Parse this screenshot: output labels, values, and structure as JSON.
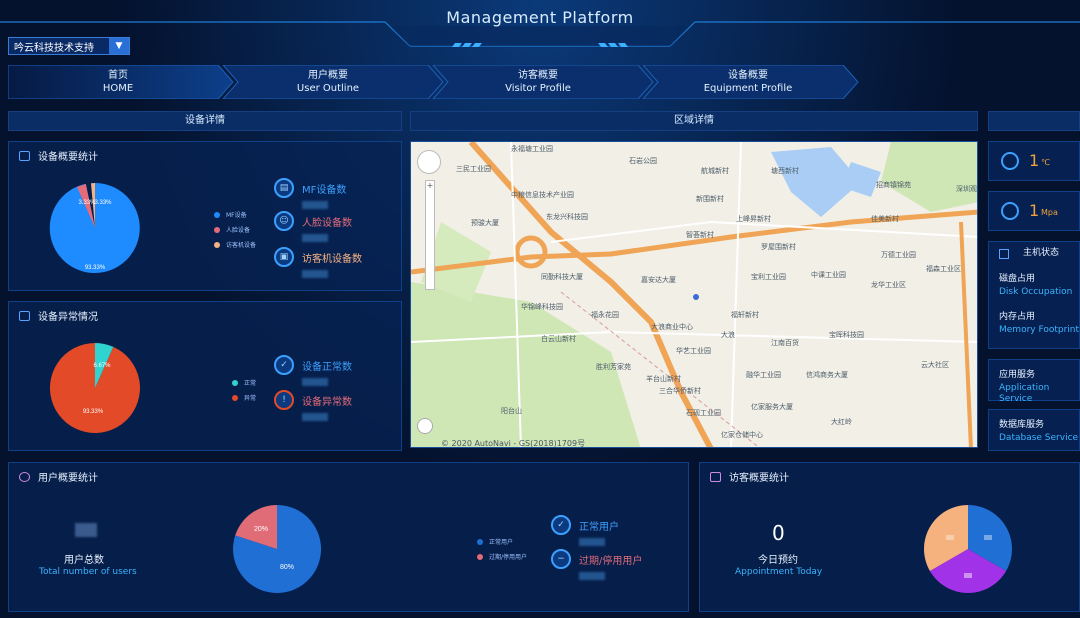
{
  "header": {
    "title": "Management Platform"
  },
  "org_select": {
    "value": "吟云科技技术支持"
  },
  "nav": [
    {
      "cn": "首页",
      "en": "HOME"
    },
    {
      "cn": "用户概要",
      "en": "User Outline"
    },
    {
      "cn": "访客概要",
      "en": "Visitor Profile"
    },
    {
      "cn": "设备概要",
      "en": "Equipment Profile"
    }
  ],
  "sections": {
    "device_detail": "设备详情",
    "region_detail": "区域详情"
  },
  "device_stats": {
    "title": "设备概要统计",
    "legend": [
      "MF设备",
      "人脸设备",
      "访客机设备"
    ],
    "labels": [
      "MF设备数",
      "人脸设备数",
      "访客机设备数"
    ],
    "pie_labels": [
      "93.33%",
      "3.33%",
      "3.33%"
    ],
    "colors": [
      "#1e8bff",
      "#e66b78",
      "#f6b283"
    ]
  },
  "device_abnormal": {
    "title": "设备异常情况",
    "legend": [
      "正常",
      "异常"
    ],
    "labels": [
      "设备正常数",
      "设备异常数"
    ],
    "pie_labels": [
      "6.67%",
      "93.33%"
    ],
    "colors": [
      "#2fd3cf",
      "#e34a28"
    ]
  },
  "map": {
    "copyright": "© 2020 AutoNavi - GS(2018)1709号",
    "labels": [
      "永福塘工业园",
      "石岩公园",
      "航城新村",
      "塘西新村",
      "三民工业园",
      "中粮信息技术产业园",
      "新围新村",
      "招商镇锦苑",
      "东龙兴科技园",
      "上峰昇新村",
      "佳美新村",
      "预骏大厦",
      "深圳观澜",
      "智荟新村",
      "罗屋围新村",
      "宝利工业园",
      "中课工业园",
      "万德工业园",
      "福森工业区",
      "同勤科技大厦",
      "嘉安达大厦",
      "龙华工业区",
      "华锦峰科技园",
      "福永花园",
      "大浪商业中心",
      "福轩新村",
      "白云山新村",
      "华艺工业园",
      "宝晖科技园",
      "江南百货",
      "胜利芳家苑",
      "羊台山新村",
      "三合华侨新村",
      "融华工业园",
      "信鸿商务大厦",
      "阳台山",
      "大浪",
      "云大社区",
      "石砚工业园",
      "亿家服务大厦",
      "亿家仓储中心",
      "大红岭"
    ]
  },
  "right": {
    "temp": "1",
    "temp_unit": "℃",
    "pressure": "1",
    "pressure_unit": "Mpa",
    "host_title": "主机状态",
    "disk_cn": "磁盘占用",
    "disk_en": "Disk Occupation",
    "mem_cn": "内存占用",
    "mem_en": "Memory Footprint",
    "app_cn": "应用服务",
    "app_en": "Application Service",
    "db_cn": "数据库服务",
    "db_en": "Database Service"
  },
  "user_stats": {
    "title": "用户概要统计",
    "total_cn": "用户总数",
    "total_en": "Total number of users",
    "legend": [
      "正常用户",
      "过期/停用用户"
    ],
    "labels": [
      "正常用户",
      "过期/停用用户"
    ],
    "pie_labels": [
      "80%",
      "20%"
    ],
    "colors": [
      "#1f6fd4",
      "#e06c78"
    ]
  },
  "visitor_stats": {
    "title": "访客概要统计",
    "count": "0",
    "count_cn": "今日预约",
    "count_en": "Appointment Today",
    "colors": [
      "#1f6fd4",
      "#a232e8",
      "#f5b27e"
    ]
  }
}
